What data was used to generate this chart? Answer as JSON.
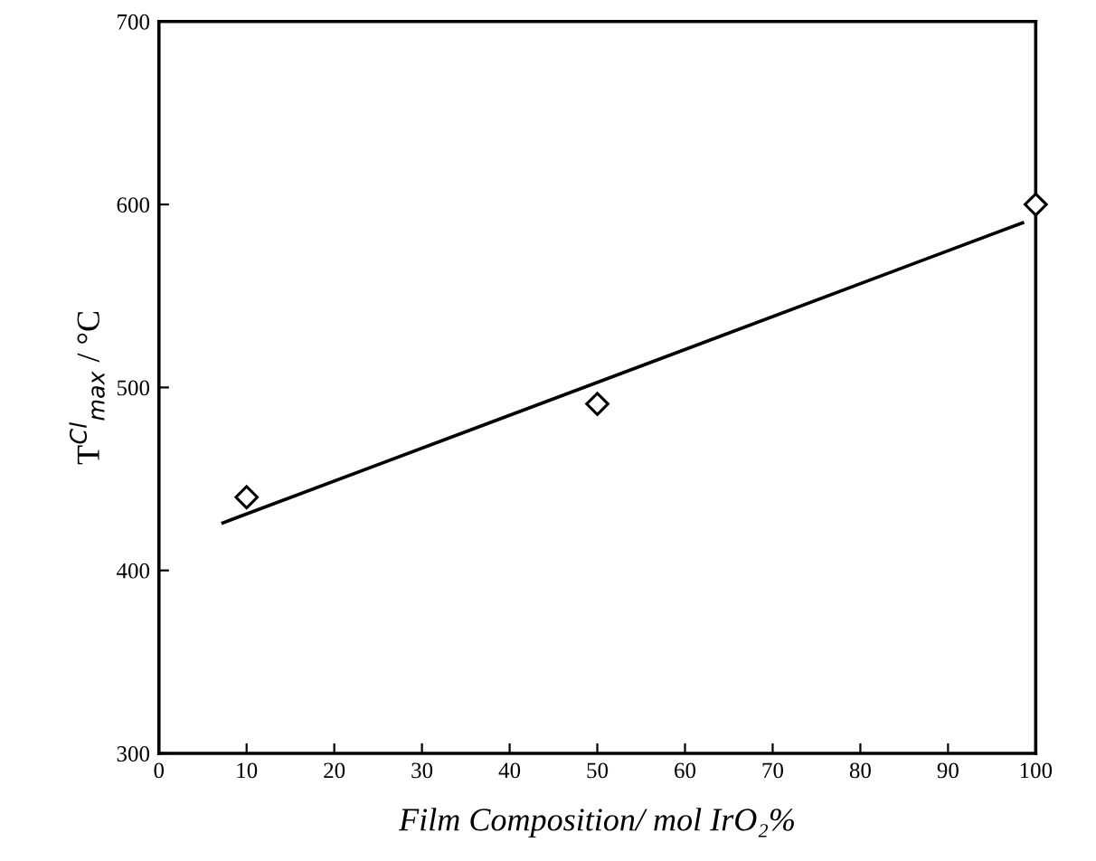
{
  "chart_data": {
    "type": "scatter",
    "xlabel": "Film Composition/ mol IrO₂%",
    "ylabel": "T$^{Cl}$$_{max}$ / °C",
    "series": [
      {
        "x": [
          10,
          50,
          100
        ],
        "values": [
          440,
          491,
          600
        ],
        "color": "#000000",
        "marker": "diamond"
      },
      {
        "type": "line",
        "x": [
          7.3,
          98.5
        ],
        "values": [
          426,
          590
        ],
        "color": "#000000",
        "marker": "none"
      }
    ],
    "xlim": [
      0,
      100
    ],
    "xticks": [
      0,
      10,
      20,
      30,
      40,
      50,
      60,
      70,
      80,
      90,
      100
    ],
    "ylim": [
      300,
      700
    ],
    "yticks": [
      300,
      400,
      500,
      600,
      700
    ]
  }
}
